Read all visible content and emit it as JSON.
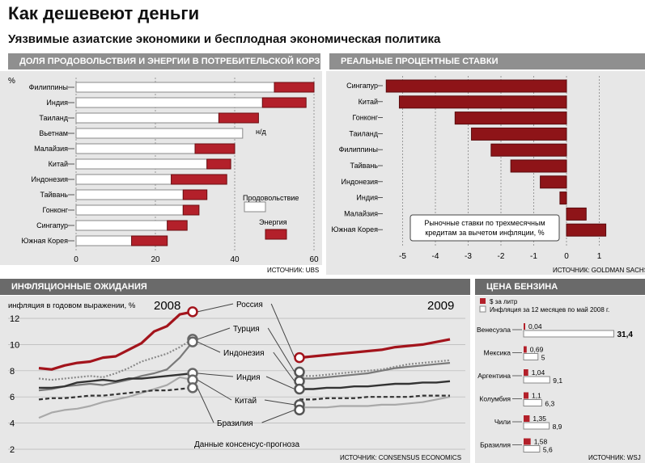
{
  "header": {
    "title": "Как дешевеют деньги",
    "subtitle": "Уязвимые азиатские экономики и бесплодная экономическая политика"
  },
  "colors": {
    "red": "#b3202a",
    "dark_red": "#8e1418",
    "gray_line": "#8a8a8a",
    "dark_line": "#333333",
    "panel_bg": "#e7e7e7"
  },
  "chart_data": [
    {
      "type": "bar",
      "id": "food_energy",
      "title": "ДОЛЯ ПРОДОВОЛЬСТВИЯ И ЭНЕРГИИ В ПОТРЕБИТЕЛЬСКОЙ КОРЗИНЕ",
      "ylabel": "%",
      "categories": [
        "Филиппины",
        "Индия",
        "Таиланд",
        "Вьетнам",
        "Малайзия",
        "Китай",
        "Индонезия",
        "Тайвань",
        "Гонконг",
        "Сингапур",
        "Южная Корея"
      ],
      "series": [
        {
          "name": "Продовольствие",
          "values": [
            50,
            47,
            36,
            42,
            30,
            33,
            24,
            27,
            27,
            23,
            14
          ]
        },
        {
          "name": "Энергия",
          "values": [
            10,
            11,
            10,
            null,
            10,
            6,
            14,
            6,
            4,
            5,
            9
          ]
        }
      ],
      "notes": {
        "Вьетнам": "н/д"
      },
      "xlim": [
        0,
        62
      ],
      "ticks": [
        "0",
        "20",
        "40",
        "60"
      ],
      "source": "ИСТОЧНИК: UBS"
    },
    {
      "type": "bar",
      "id": "real_rates",
      "title": "РЕАЛЬНЫЕ ПРОЦЕНТНЫЕ СТАВКИ",
      "categories": [
        "Сингапур",
        "Китай",
        "Гонконг",
        "Таиланд",
        "Филиппины",
        "Тайвань",
        "Индонезия",
        "Индия",
        "Малайзия",
        "Южная Корея"
      ],
      "values": [
        -5.5,
        -5.1,
        -3.4,
        -2.9,
        -2.3,
        -1.7,
        -0.8,
        -0.2,
        0.6,
        1.2
      ],
      "xlim": [
        -5.7,
        1.5
      ],
      "ticks": [
        "-5",
        "-4",
        "-3",
        "-2",
        "-1",
        "0",
        "1"
      ],
      "annotation": "Рыночные ставки по трехмесячным кредитам за вычетом инфляции, %",
      "source": "ИСТОЧНИК: GOLDMAN SACHS"
    },
    {
      "type": "line",
      "id": "inflation",
      "title": "ИНФЛЯЦИОННЫЕ ОЖИДАНИЯ",
      "ylabel": "инфляция в годовом выражении, %",
      "year_labels": [
        "2008",
        "2009"
      ],
      "ylim": [
        2,
        13
      ],
      "ticks": [
        "2",
        "4",
        "6",
        "8",
        "10",
        "12"
      ],
      "footnote": "Данные консенсус-прогноза",
      "source": "ИСТОЧНИК: CONSENSUS ECONOMICS",
      "series_2008": [
        {
          "name": "Россия",
          "style": "red",
          "values": [
            8.2,
            8.1,
            8.4,
            8.6,
            8.7,
            9.0,
            9.1,
            9.6,
            10.1,
            11.0,
            11.4,
            12.3,
            12.5
          ]
        },
        {
          "name": "Турция",
          "style": "dotted",
          "values": [
            7.4,
            7.3,
            7.4,
            7.5,
            7.6,
            7.5,
            7.8,
            8.2,
            8.7,
            9.0,
            9.3,
            9.8,
            10.4
          ]
        },
        {
          "name": "Индонезия",
          "style": "gray",
          "values": [
            6.5,
            6.6,
            6.8,
            6.9,
            7.0,
            6.9,
            7.1,
            7.3,
            7.6,
            7.8,
            8.1,
            9.0,
            10.2
          ]
        },
        {
          "name": "Индия",
          "style": "dark",
          "values": [
            6.7,
            6.7,
            6.8,
            7.1,
            7.2,
            7.3,
            7.2,
            7.4,
            7.4,
            7.5,
            7.6,
            7.7,
            7.8
          ]
        },
        {
          "name": "Китай",
          "style": "lightgray",
          "values": [
            4.4,
            4.8,
            5.0,
            5.1,
            5.3,
            5.6,
            5.8,
            6.0,
            6.3,
            6.6,
            6.9,
            7.5,
            7.3
          ]
        },
        {
          "name": "Бразилия",
          "style": "dashed",
          "values": [
            5.8,
            5.9,
            5.9,
            6.0,
            6.1,
            6.1,
            6.2,
            6.3,
            6.4,
            6.5,
            6.5,
            6.6,
            6.7
          ]
        }
      ],
      "series_2009": [
        {
          "name": "Россия",
          "style": "red",
          "values": [
            9.0,
            9.1,
            9.2,
            9.3,
            9.4,
            9.5,
            9.6,
            9.8,
            9.9,
            10.0,
            10.2,
            10.4
          ]
        },
        {
          "name": "Турция",
          "style": "dotted",
          "values": [
            7.6,
            7.6,
            7.7,
            7.8,
            7.9,
            8.0,
            8.1,
            8.3,
            8.5,
            8.6,
            8.7,
            8.8
          ]
        },
        {
          "name": "Индонезия",
          "style": "gray",
          "values": [
            7.4,
            7.4,
            7.5,
            7.6,
            7.7,
            7.8,
            8.0,
            8.2,
            8.3,
            8.4,
            8.5,
            8.6
          ]
        },
        {
          "name": "Индия",
          "style": "dark",
          "values": [
            6.6,
            6.6,
            6.7,
            6.7,
            6.8,
            6.8,
            6.9,
            7.0,
            7.0,
            7.1,
            7.1,
            7.2
          ]
        },
        {
          "name": "Китай",
          "style": "lightgray",
          "values": [
            5.2,
            5.2,
            5.2,
            5.3,
            5.3,
            5.3,
            5.4,
            5.4,
            5.5,
            5.6,
            5.8,
            6.0
          ]
        },
        {
          "name": "Бразилия",
          "style": "dashed",
          "values": [
            5.8,
            5.8,
            5.9,
            5.9,
            5.9,
            6.0,
            6.0,
            6.0,
            6.0,
            6.1,
            6.1,
            6.1
          ]
        }
      ]
    },
    {
      "type": "bar",
      "id": "gasoline",
      "title": "ЦЕНА БЕНЗИНА",
      "legend": [
        "$ за литр",
        "Инфляция за 12 месяцев по май 2008 г."
      ],
      "categories": [
        "Венесуэла",
        "Мексика",
        "Аргентина",
        "Колумбия",
        "Чили",
        "Бразилия"
      ],
      "series": [
        {
          "name": "$ за литр",
          "values": [
            0.04,
            0.69,
            1.04,
            1.1,
            1.35,
            1.58
          ],
          "labels": [
            "0,04",
            "0,69",
            "1,04",
            "1,1",
            "1,35",
            "1,58"
          ]
        },
        {
          "name": "Инфляция",
          "values": [
            31.4,
            5,
            9.1,
            6.3,
            8.9,
            5.6
          ],
          "labels": [
            "31,4",
            "5",
            "9,1",
            "6,3",
            "8,9",
            "5,6"
          ]
        }
      ],
      "source": "ИСТОЧНИК: WSJ"
    }
  ]
}
